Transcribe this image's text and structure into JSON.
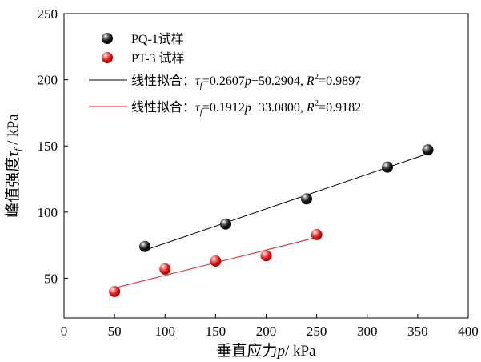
{
  "chart_data": {
    "type": "scatter",
    "xlabel": "垂直应力p/ kPa",
    "ylabel": "峰值强度τf / kPa",
    "xlim": [
      0,
      400
    ],
    "ylim": [
      20,
      250
    ],
    "xticks": [
      0,
      50,
      100,
      150,
      200,
      250,
      300,
      350,
      400
    ],
    "yticks": [
      50,
      100,
      150,
      200,
      250
    ],
    "grid": false,
    "legend_position": "top-left",
    "series": [
      {
        "name": "PQ-1试样",
        "color": "#000000",
        "marker": "sphere",
        "x": [
          80,
          160,
          240,
          320,
          360
        ],
        "y": [
          74,
          91,
          110,
          134,
          147
        ]
      },
      {
        "name": "PT-3 试样",
        "color": "#e02020",
        "marker": "sphere",
        "x": [
          50,
          100,
          150,
          200,
          250
        ],
        "y": [
          40,
          57,
          63,
          67,
          83
        ]
      }
    ],
    "fits": [
      {
        "label": "线性拟合：τf=0.2607p+50.2904, R2=0.9897",
        "slope": 0.2607,
        "intercept": 50.2904,
        "r2": 0.9897,
        "x_range": [
          80,
          360
        ],
        "color": "#000000"
      },
      {
        "label": "线性拟合：τf=0.1912p+33.0800, R2=0.9182",
        "slope": 0.1912,
        "intercept": 33.08,
        "r2": 0.9182,
        "x_range": [
          50,
          250
        ],
        "color": "#e02020"
      }
    ]
  }
}
